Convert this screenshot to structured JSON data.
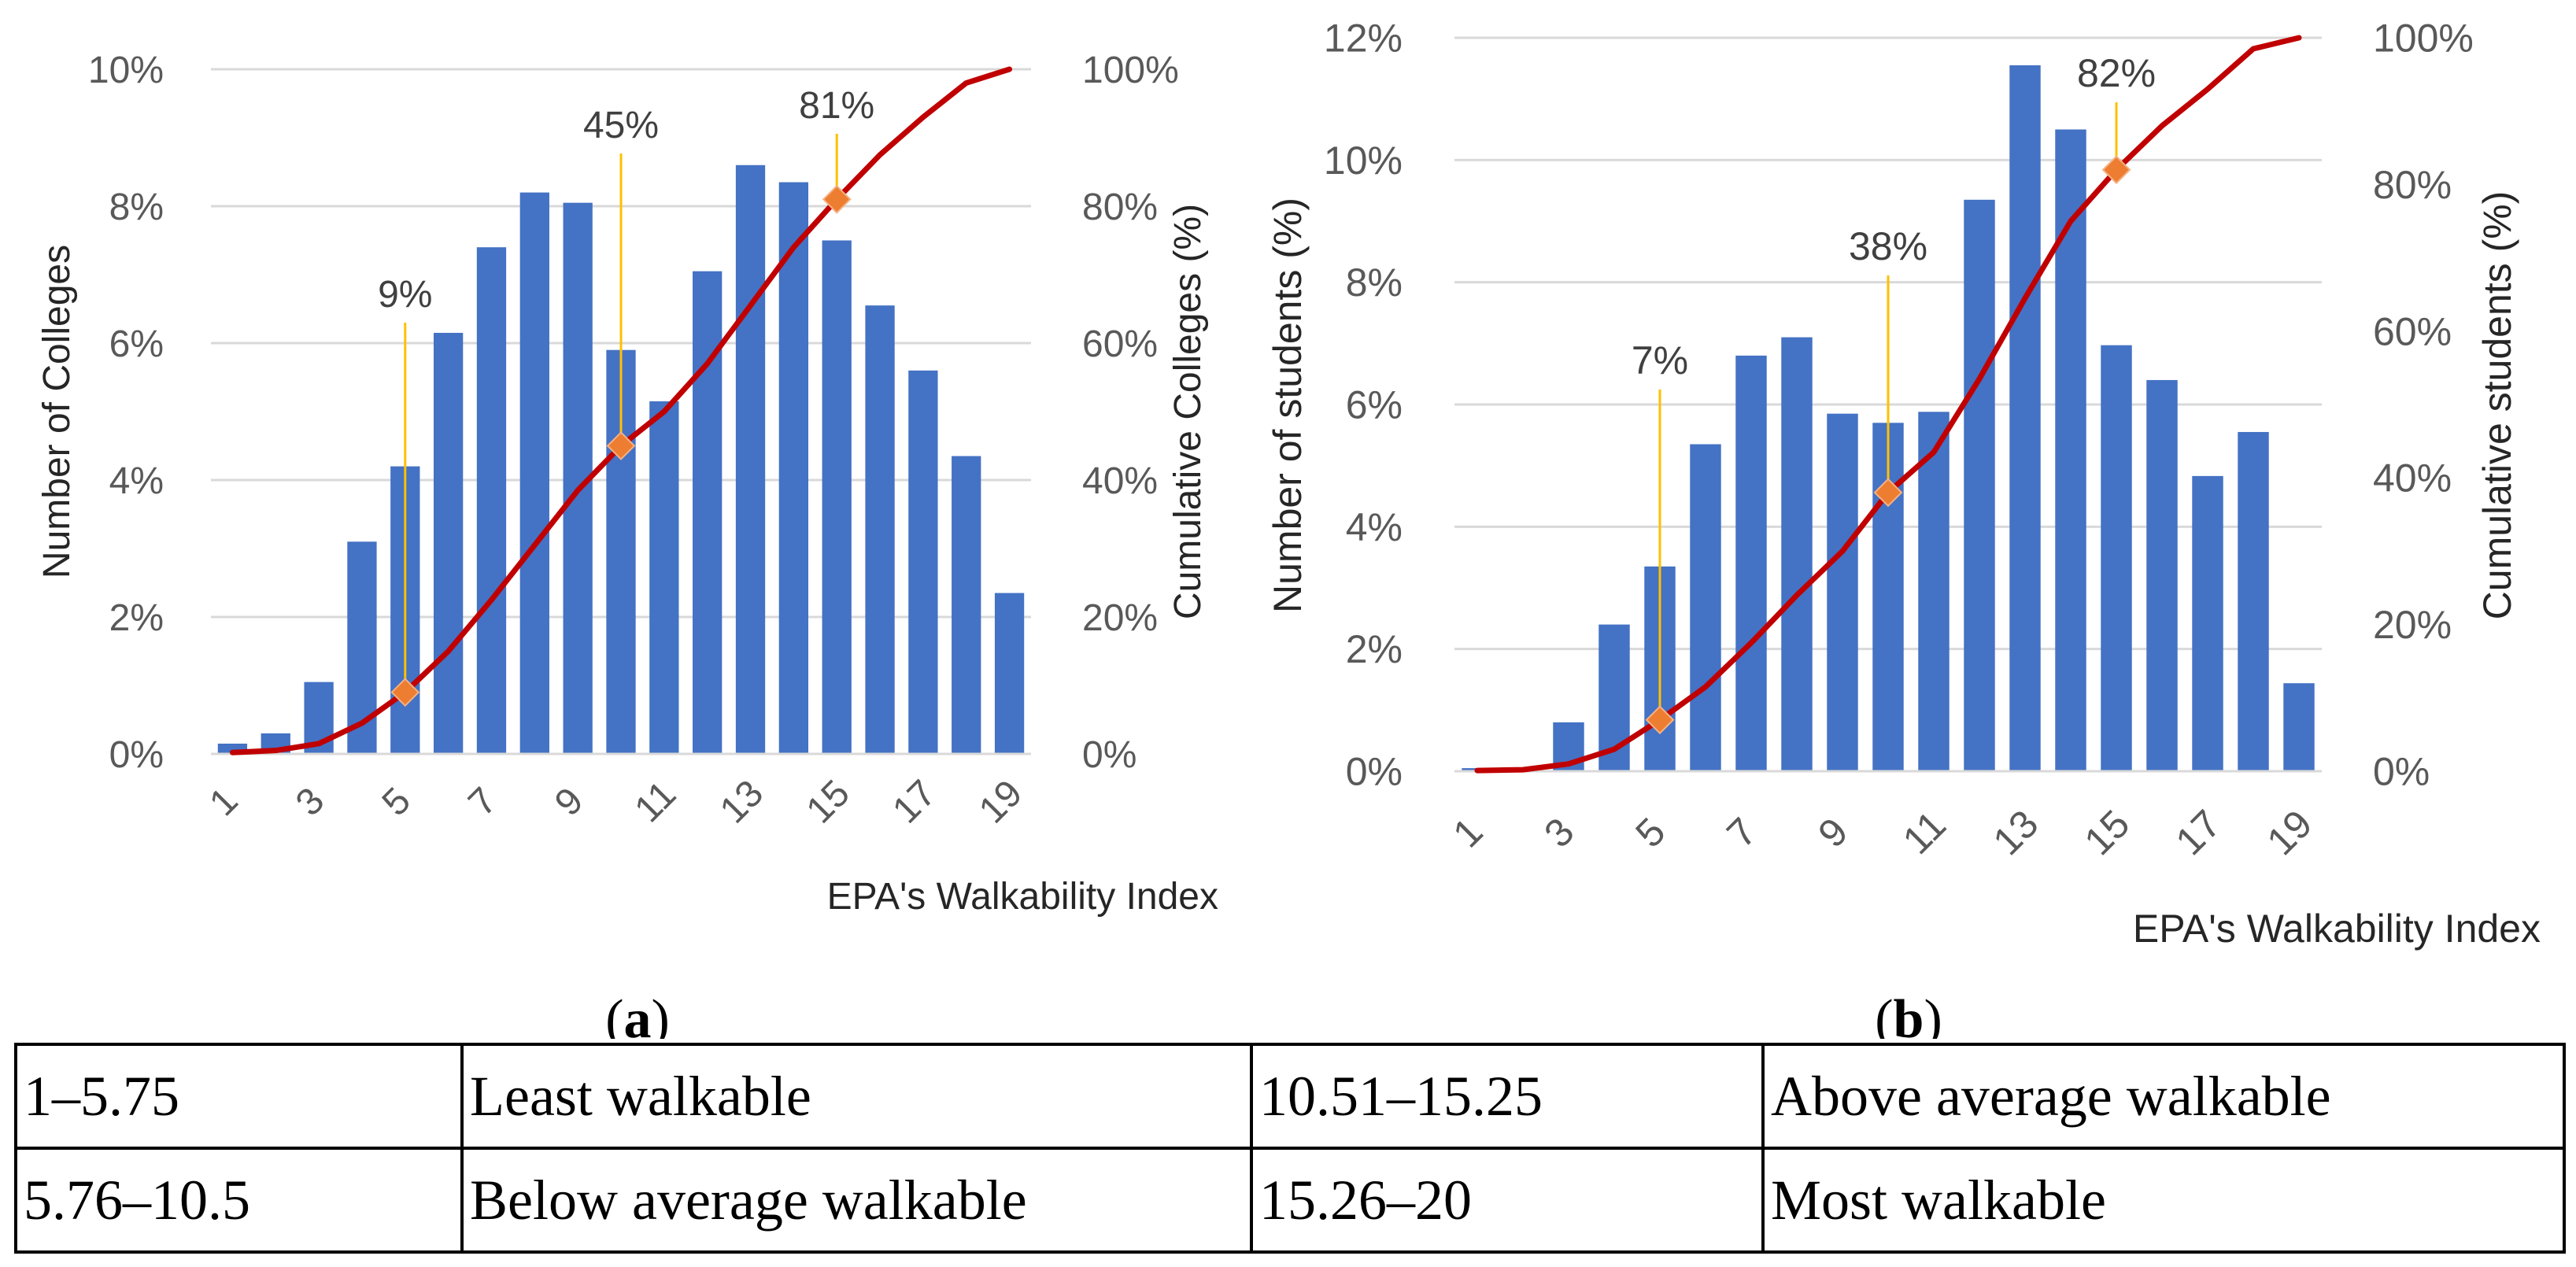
{
  "chart_data": [
    {
      "type": "bar",
      "panel_label": "a",
      "categories": [
        "1",
        "2",
        "3",
        "4",
        "5",
        "6",
        "7",
        "8",
        "9",
        "10",
        "11",
        "12",
        "13",
        "14",
        "15",
        "16",
        "17",
        "18",
        "19"
      ],
      "x_tick_labels": [
        "1",
        "3",
        "5",
        "7",
        "9",
        "11",
        "13",
        "15",
        "17",
        "19"
      ],
      "series": [
        {
          "name": "Number of Colleges",
          "type": "bar",
          "axis": "left",
          "color": "#4472C4",
          "values": [
            0.15,
            0.3,
            1.05,
            3.1,
            4.2,
            6.15,
            7.4,
            8.2,
            8.05,
            5.9,
            5.15,
            7.05,
            8.6,
            8.35,
            7.5,
            6.55,
            5.6,
            4.35,
            2.35
          ]
        },
        {
          "name": "Cumulative Colleges (%)",
          "type": "line",
          "axis": "right",
          "color": "#C00000",
          "values": [
            0.2,
            0.5,
            1.5,
            4.5,
            9,
            15,
            22.5,
            30.5,
            38.5,
            45,
            50,
            57,
            65.5,
            74,
            81,
            87.5,
            93,
            98,
            100
          ]
        }
      ],
      "markers": [
        {
          "x": 5,
          "y": 9,
          "label": "9%"
        },
        {
          "x": 10,
          "y": 45,
          "label": "45%"
        },
        {
          "x": 15,
          "y": 81,
          "label": "81%"
        }
      ],
      "ylabel": "Number of Colleges",
      "y2label": "Cumulative Colleges (%)",
      "xlabel": "EPA's Walkability Index",
      "ylim": [
        0,
        10
      ],
      "y2lim": [
        0,
        100
      ],
      "y_tick_labels": [
        "0%",
        "2%",
        "4%",
        "6%",
        "8%",
        "10%"
      ],
      "y2_tick_labels": [
        "0%",
        "20%",
        "40%",
        "60%",
        "80%",
        "100%"
      ],
      "grid": true,
      "caption": "a"
    },
    {
      "type": "bar",
      "panel_label": "b",
      "categories": [
        "1",
        "2",
        "3",
        "4",
        "5",
        "6",
        "7",
        "8",
        "9",
        "10",
        "11",
        "12",
        "13",
        "14",
        "15",
        "16",
        "17",
        "18",
        "19"
      ],
      "x_tick_labels": [
        "1",
        "3",
        "5",
        "7",
        "9",
        "11",
        "13",
        "15",
        "17",
        "19"
      ],
      "series": [
        {
          "name": "Number of students (%)",
          "type": "bar",
          "axis": "left",
          "color": "#4472C4",
          "values": [
            0.05,
            0.0,
            0.8,
            2.4,
            3.35,
            5.35,
            6.8,
            7.1,
            5.85,
            5.7,
            5.88,
            9.35,
            11.55,
            10.5,
            6.97,
            6.4,
            4.83,
            5.55,
            1.44
          ]
        },
        {
          "name": "Cumulative students (%)",
          "type": "line",
          "axis": "right",
          "color": "#C00000",
          "values": [
            0.1,
            0.2,
            1,
            3,
            7,
            11.5,
            17.5,
            24,
            30,
            38,
            43.5,
            53.5,
            64.5,
            75,
            82,
            88,
            93,
            98.5,
            100
          ]
        }
      ],
      "markers": [
        {
          "x": 5,
          "y": 7,
          "label": "7%"
        },
        {
          "x": 10,
          "y": 38,
          "label": "38%"
        },
        {
          "x": 15,
          "y": 82,
          "label": "82%"
        }
      ],
      "ylabel": "Number of students (%)",
      "y2label": "Cumulative students (%)",
      "xlabel": "EPA's Walkability Index",
      "ylim": [
        0,
        12
      ],
      "y2lim": [
        0,
        100
      ],
      "y_tick_labels": [
        "0%",
        "2%",
        "4%",
        "6%",
        "8%",
        "10%",
        "12%"
      ],
      "y2_tick_labels": [
        "0%",
        "20%",
        "40%",
        "60%",
        "80%",
        "100%"
      ],
      "grid": true,
      "caption": "b"
    }
  ],
  "table": {
    "rows": [
      [
        "1–5.75",
        "Least walkable",
        "10.51–15.25",
        "Above average walkable"
      ],
      [
        "5.76–10.5",
        "Below average walkable",
        "15.26–20",
        "Most walkable"
      ]
    ]
  },
  "colors": {
    "bar": "#4472C4",
    "line": "#C00000",
    "marker": "#ED7D31",
    "leader": "#FFC000",
    "grid": "#D9D9D9",
    "axis": "#595959"
  }
}
